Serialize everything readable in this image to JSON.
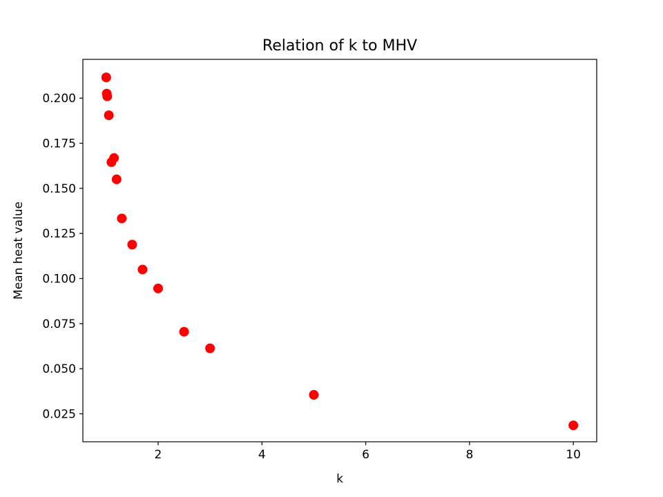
{
  "chart_data": {
    "type": "scatter",
    "title": "Relation of k to MHV",
    "xlabel": "k",
    "ylabel": "Mean heat value",
    "xlim": [
      0.55,
      10.45
    ],
    "ylim": [
      0.0095,
      0.2215
    ],
    "x_ticks": [
      {
        "value": 2,
        "label": "2"
      },
      {
        "value": 4,
        "label": "4"
      },
      {
        "value": 6,
        "label": "6"
      },
      {
        "value": 8,
        "label": "8"
      },
      {
        "value": 10,
        "label": "10"
      }
    ],
    "y_ticks": [
      {
        "value": 0.025,
        "label": "0.025"
      },
      {
        "value": 0.05,
        "label": "0.050"
      },
      {
        "value": 0.075,
        "label": "0.075"
      },
      {
        "value": 0.1,
        "label": "0.100"
      },
      {
        "value": 0.125,
        "label": "0.125"
      },
      {
        "value": 0.15,
        "label": "0.150"
      },
      {
        "value": 0.175,
        "label": "0.175"
      },
      {
        "value": 0.2,
        "label": "0.200"
      }
    ],
    "grid": false,
    "marker_color": "#ff0000",
    "points": [
      {
        "x": 1.0,
        "y": 0.2115
      },
      {
        "x": 1.01,
        "y": 0.2025
      },
      {
        "x": 1.02,
        "y": 0.201
      },
      {
        "x": 1.05,
        "y": 0.1905
      },
      {
        "x": 1.1,
        "y": 0.1645
      },
      {
        "x": 1.15,
        "y": 0.1668
      },
      {
        "x": 1.2,
        "y": 0.155
      },
      {
        "x": 1.3,
        "y": 0.1333
      },
      {
        "x": 1.5,
        "y": 0.1188
      },
      {
        "x": 1.7,
        "y": 0.105
      },
      {
        "x": 2.0,
        "y": 0.0945
      },
      {
        "x": 2.5,
        "y": 0.0705
      },
      {
        "x": 3.0,
        "y": 0.0613
      },
      {
        "x": 5.0,
        "y": 0.0355
      },
      {
        "x": 10.0,
        "y": 0.0186
      }
    ]
  }
}
